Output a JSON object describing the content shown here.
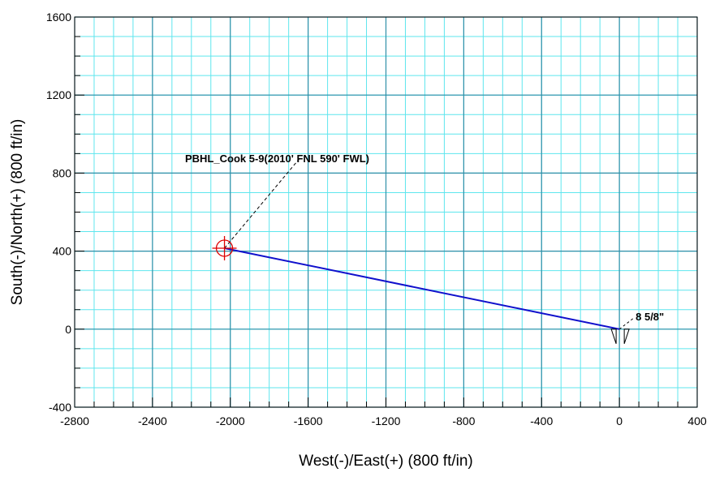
{
  "chart_data": {
    "type": "line",
    "xlabel": "West(-)/East(+) (800 ft/in)",
    "ylabel": "South(-)/North(+) (800 ft/in)",
    "xlim": [
      -2800,
      400
    ],
    "ylim": [
      -400,
      1600
    ],
    "x_ticks": [
      "-2800",
      "-2400",
      "-2000",
      "-1600",
      "-1200",
      "-800",
      "-400",
      "0",
      "400"
    ],
    "y_ticks": [
      "-400",
      "0",
      "400",
      "800",
      "1200",
      "1600"
    ],
    "x_tick_values": [
      -2800,
      -2400,
      -2000,
      -1600,
      -1200,
      -800,
      -400,
      0,
      400
    ],
    "y_tick_values": [
      -400,
      0,
      400,
      800,
      1200,
      1600
    ],
    "minor_grid_step": 100,
    "grid": true,
    "colors": {
      "minor_grid": "#5ee6ee",
      "major_grid": "#2f8fa8",
      "well_path": "#1010cc",
      "target": "#dd0000",
      "frame": "#000000"
    },
    "series": [
      {
        "x": [
          0,
          -2030
        ],
        "y": [
          0,
          415
        ]
      }
    ],
    "annotations": [
      {
        "text": "PBHL_Cook 5-9(2010' FNL 590' FWL)",
        "x": -2030,
        "y": 415,
        "marker": "target"
      },
      {
        "text": "8 5/8\"",
        "x": 0,
        "y": 0,
        "marker": "casing"
      }
    ]
  }
}
